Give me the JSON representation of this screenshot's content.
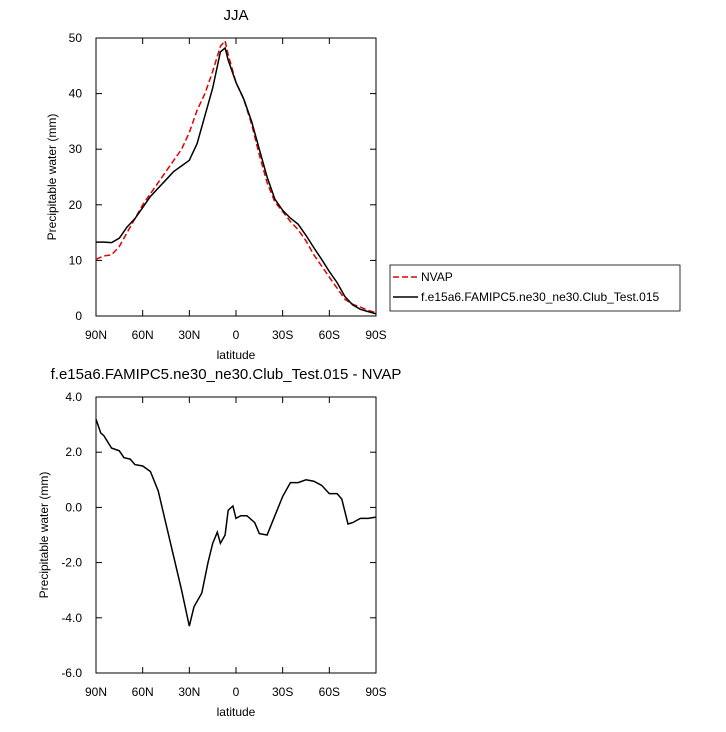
{
  "chart_data": [
    {
      "type": "line",
      "title": "JJA",
      "xlabel": "latitude",
      "ylabel": "Precipitable water (mm)",
      "xlim": [
        90,
        -90
      ],
      "xticks": [
        {
          "value": 90,
          "label": "90N"
        },
        {
          "value": 60,
          "label": "60N"
        },
        {
          "value": 30,
          "label": "30N"
        },
        0,
        {
          "value": -30,
          "label": "30S"
        },
        {
          "value": -60,
          "label": "60S"
        },
        {
          "value": -90,
          "label": "90S"
        }
      ],
      "ylim": [
        0,
        50
      ],
      "yticks": [
        0,
        10,
        20,
        30,
        40,
        50
      ],
      "x": [
        90,
        85,
        80,
        75,
        70,
        65,
        60,
        55,
        50,
        45,
        40,
        35,
        30,
        25,
        20,
        15,
        10,
        7,
        5,
        0,
        -5,
        -10,
        -15,
        -20,
        -25,
        -30,
        -35,
        -40,
        -45,
        -50,
        -55,
        -60,
        -65,
        -70,
        -75,
        -80,
        -85,
        -90
      ],
      "series": [
        {
          "name": "NVAP",
          "color": "#e00000",
          "dash": true,
          "values": [
            10.2,
            10.8,
            11,
            12.5,
            15,
            17.5,
            20,
            22,
            24,
            26,
            28,
            30,
            33,
            37,
            40,
            44,
            48.5,
            49.5,
            47,
            42,
            39,
            34.5,
            29,
            24,
            20.5,
            18.8,
            17,
            15.5,
            13.5,
            11,
            9,
            7,
            5,
            3,
            2.1,
            1.6,
            1,
            0.6
          ]
        },
        {
          "name": "f.e15a6.FAMIPC5.ne30_ne30.Club_Test.015",
          "color": "#000000",
          "dash": false,
          "values": [
            13.3,
            13.3,
            13.2,
            14,
            16,
            17.5,
            19.5,
            21.5,
            23,
            24.5,
            26,
            27,
            28,
            31,
            36,
            41,
            47.5,
            48.2,
            46,
            42,
            39,
            35,
            30,
            25,
            21,
            19,
            17.6,
            16.5,
            14.5,
            12.3,
            10.2,
            8,
            6,
            3.5,
            2,
            1.2,
            0.8,
            0.4
          ]
        }
      ]
    },
    {
      "type": "line",
      "title": "f.e15a6.FAMIPC5.ne30_ne30.Club_Test.015 - NVAP",
      "xlabel": "latitude",
      "ylabel": "Precipitable water (mm)",
      "xlim": [
        90,
        -90
      ],
      "xticks": [
        {
          "value": 90,
          "label": "90N"
        },
        {
          "value": 60,
          "label": "60N"
        },
        {
          "value": 30,
          "label": "30N"
        },
        0,
        {
          "value": -30,
          "label": "30S"
        },
        {
          "value": -60,
          "label": "60S"
        },
        {
          "value": -90,
          "label": "90S"
        }
      ],
      "ylim": [
        -6,
        4
      ],
      "yticks": [
        {
          "value": -6,
          "label": "-6.0"
        },
        {
          "value": -4,
          "label": "-4.0"
        },
        {
          "value": -2,
          "label": "-2.0"
        },
        {
          "value": 0,
          "label": "0.0"
        },
        {
          "value": 2,
          "label": "2.0"
        },
        {
          "value": 4,
          "label": "4.0"
        }
      ],
      "x": [
        90,
        87,
        85,
        80,
        75,
        72,
        68,
        65,
        60,
        55,
        50,
        45,
        40,
        35,
        30,
        27,
        22,
        18,
        15,
        12,
        10,
        7,
        5,
        2,
        0,
        -3,
        -7,
        -12,
        -15,
        -20,
        -25,
        -30,
        -35,
        -40,
        -45,
        -50,
        -55,
        -60,
        -65,
        -68,
        -72,
        -75,
        -80,
        -85,
        -90
      ],
      "series": [
        {
          "color": "#000000",
          "dash": false,
          "values": [
            3.2,
            2.7,
            2.6,
            2.15,
            2.05,
            1.8,
            1.75,
            1.55,
            1.5,
            1.3,
            0.6,
            -0.6,
            -1.8,
            -3,
            -4.3,
            -3.6,
            -3.1,
            -2,
            -1.3,
            -0.9,
            -1.3,
            -1,
            -0.1,
            0.05,
            -0.4,
            -0.3,
            -0.3,
            -0.55,
            -0.95,
            -1,
            -0.3,
            0.4,
            0.9,
            0.9,
            1,
            0.95,
            0.8,
            0.5,
            0.5,
            0.3,
            -0.6,
            -0.55,
            -0.4,
            -0.4,
            -0.35
          ]
        }
      ]
    }
  ]
}
